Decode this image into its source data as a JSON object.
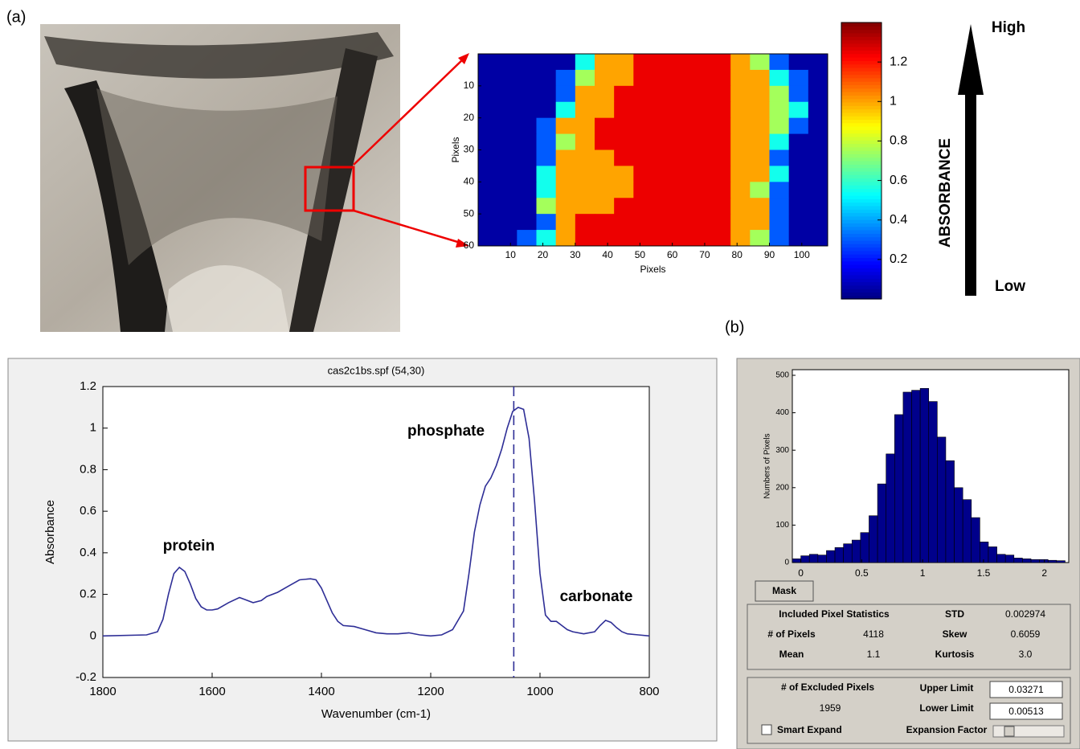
{
  "labels": {
    "a": "(a)",
    "b": "(b)"
  },
  "absorbance_arrow": {
    "high": "High",
    "low": "Low",
    "label": "ABSORBANCE"
  },
  "chart_data": [
    {
      "type": "heatmap",
      "xlabel": "Pixels",
      "ylabel": "Pixels",
      "xlim": [
        0,
        108
      ],
      "ylim": [
        0,
        60
      ],
      "xticks": [
        10,
        20,
        30,
        40,
        50,
        60,
        70,
        80,
        90,
        100
      ],
      "yticks": [
        10,
        20,
        30,
        40,
        50,
        60
      ],
      "colormap": "jet",
      "clim": [
        0,
        1.4
      ],
      "cticks": [
        0.2,
        0.4,
        0.6,
        0.8,
        1,
        1.2
      ],
      "values": [
        [
          0.05,
          0.05,
          0.05,
          0.05,
          0.05,
          0.55,
          1.0,
          1.0,
          1.25,
          1.25,
          1.25,
          1.25,
          1.25,
          1.0,
          0.75,
          0.3,
          0.05,
          0.05
        ],
        [
          0.05,
          0.05,
          0.05,
          0.05,
          0.3,
          0.75,
          1.0,
          1.0,
          1.25,
          1.25,
          1.25,
          1.25,
          1.25,
          1.0,
          1.0,
          0.55,
          0.3,
          0.05
        ],
        [
          0.05,
          0.05,
          0.05,
          0.05,
          0.3,
          1.0,
          1.0,
          1.25,
          1.25,
          1.25,
          1.25,
          1.25,
          1.25,
          1.0,
          1.0,
          0.75,
          0.3,
          0.05
        ],
        [
          0.05,
          0.05,
          0.05,
          0.05,
          0.55,
          1.0,
          1.0,
          1.25,
          1.25,
          1.25,
          1.25,
          1.25,
          1.25,
          1.0,
          1.0,
          0.75,
          0.55,
          0.05
        ],
        [
          0.05,
          0.05,
          0.05,
          0.3,
          1.0,
          1.0,
          1.25,
          1.25,
          1.25,
          1.25,
          1.25,
          1.25,
          1.25,
          1.0,
          1.0,
          0.75,
          0.3,
          0.05
        ],
        [
          0.05,
          0.05,
          0.05,
          0.3,
          0.75,
          1.0,
          1.25,
          1.25,
          1.25,
          1.25,
          1.25,
          1.25,
          1.25,
          1.0,
          1.0,
          0.55,
          0.05,
          0.05
        ],
        [
          0.05,
          0.05,
          0.05,
          0.3,
          1.0,
          1.0,
          1.0,
          1.25,
          1.25,
          1.25,
          1.25,
          1.25,
          1.25,
          1.0,
          1.0,
          0.3,
          0.05,
          0.05
        ],
        [
          0.05,
          0.05,
          0.05,
          0.55,
          1.0,
          1.0,
          1.0,
          1.0,
          1.25,
          1.25,
          1.25,
          1.25,
          1.25,
          1.0,
          1.0,
          0.55,
          0.05,
          0.05
        ],
        [
          0.05,
          0.05,
          0.05,
          0.55,
          1.0,
          1.0,
          1.0,
          1.0,
          1.25,
          1.25,
          1.25,
          1.25,
          1.25,
          1.0,
          0.75,
          0.3,
          0.05,
          0.05
        ],
        [
          0.05,
          0.05,
          0.05,
          0.75,
          1.0,
          1.0,
          1.0,
          1.25,
          1.25,
          1.25,
          1.25,
          1.25,
          1.25,
          1.0,
          1.0,
          0.3,
          0.05,
          0.05
        ],
        [
          0.05,
          0.05,
          0.05,
          0.3,
          1.0,
          1.25,
          1.25,
          1.25,
          1.25,
          1.25,
          1.25,
          1.25,
          1.25,
          1.0,
          1.0,
          0.3,
          0.05,
          0.05
        ],
        [
          0.05,
          0.05,
          0.3,
          0.55,
          1.0,
          1.25,
          1.25,
          1.25,
          1.25,
          1.25,
          1.25,
          1.25,
          1.25,
          1.0,
          0.75,
          0.3,
          0.05,
          0.05
        ]
      ]
    },
    {
      "type": "line",
      "title": "cas2c1bs.spf (54,30)",
      "xlabel": "Wavenumber (cm-1)",
      "ylabel": "Absorbance",
      "color": "#2e2e96",
      "xlim": [
        1800,
        800
      ],
      "ylim": [
        -0.2,
        1.2
      ],
      "xticks": [
        1800,
        1600,
        1400,
        1200,
        1000,
        800
      ],
      "yticks": [
        -0.2,
        0,
        0.2,
        0.4,
        0.6,
        0.8,
        1,
        1.2
      ],
      "cursor_x": 1048,
      "annotations": [
        "protein",
        "phosphate",
        "carbonate"
      ],
      "x": [
        1800,
        1720,
        1700,
        1690,
        1680,
        1670,
        1660,
        1650,
        1640,
        1630,
        1620,
        1610,
        1600,
        1590,
        1570,
        1550,
        1540,
        1525,
        1510,
        1500,
        1480,
        1460,
        1440,
        1420,
        1410,
        1400,
        1390,
        1380,
        1370,
        1360,
        1340,
        1320,
        1300,
        1280,
        1260,
        1240,
        1220,
        1200,
        1180,
        1160,
        1140,
        1130,
        1120,
        1110,
        1100,
        1090,
        1080,
        1070,
        1060,
        1050,
        1040,
        1030,
        1020,
        1010,
        1000,
        990,
        980,
        970,
        960,
        950,
        940,
        920,
        900,
        890,
        880,
        870,
        860,
        850,
        840,
        820,
        800
      ],
      "values": [
        0,
        0.005,
        0.02,
        0.08,
        0.2,
        0.3,
        0.33,
        0.31,
        0.25,
        0.18,
        0.14,
        0.125,
        0.125,
        0.13,
        0.16,
        0.185,
        0.175,
        0.16,
        0.17,
        0.19,
        0.21,
        0.24,
        0.27,
        0.275,
        0.27,
        0.23,
        0.17,
        0.11,
        0.07,
        0.05,
        0.045,
        0.03,
        0.015,
        0.01,
        0.01,
        0.015,
        0.005,
        0,
        0.005,
        0.03,
        0.12,
        0.3,
        0.5,
        0.63,
        0.72,
        0.76,
        0.82,
        0.9,
        1.0,
        1.08,
        1.1,
        1.09,
        0.95,
        0.65,
        0.3,
        0.1,
        0.07,
        0.07,
        0.05,
        0.03,
        0.02,
        0.01,
        0.02,
        0.05,
        0.075,
        0.065,
        0.04,
        0.02,
        0.01,
        0.005,
        0
      ]
    },
    {
      "type": "histogram",
      "ylabel": "Numbers of Pixels",
      "color": "#00008b",
      "xlim": [
        -0.07,
        2.2
      ],
      "ylim": [
        0,
        515
      ],
      "xticks": [
        0,
        0.5,
        1,
        1.5,
        2
      ],
      "yticks": [
        0,
        100,
        200,
        300,
        400,
        500
      ],
      "bins": [
        -0.07,
        0,
        0.07,
        0.14,
        0.21,
        0.28,
        0.35,
        0.42,
        0.49,
        0.56,
        0.63,
        0.7,
        0.77,
        0.84,
        0.91,
        0.98,
        1.05,
        1.12,
        1.19,
        1.26,
        1.33,
        1.4,
        1.47,
        1.54,
        1.61,
        1.68,
        1.75,
        1.82,
        1.89,
        1.96,
        2.03,
        2.1,
        2.17
      ],
      "values": [
        10,
        18,
        22,
        20,
        32,
        40,
        50,
        60,
        80,
        125,
        210,
        290,
        395,
        455,
        460,
        465,
        430,
        335,
        272,
        200,
        168,
        120,
        55,
        42,
        22,
        20,
        12,
        10,
        8,
        8,
        6,
        5
      ]
    }
  ],
  "stats_panel": {
    "button": "Mask",
    "included_title": "Included Pixel Statistics",
    "included_rows": [
      [
        "# of Pixels",
        "4118"
      ],
      [
        "Mean",
        "1.1"
      ]
    ],
    "stat_rows": [
      [
        "STD",
        "0.002974"
      ],
      [
        "Skew",
        "0.6059"
      ],
      [
        "Kurtosis",
        "3.0"
      ]
    ],
    "excluded_title": "# of Excluded Pixels",
    "excluded_count": "1959",
    "limits": [
      [
        "Upper Limit",
        "0.03271"
      ],
      [
        "Lower Limit",
        "0.00513"
      ]
    ],
    "checkbox": "Smart Expand",
    "expansion_label": "Expansion Factor"
  }
}
